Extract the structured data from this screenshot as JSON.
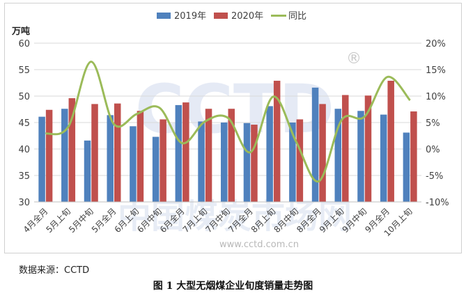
{
  "chart_data": {
    "type": "bar",
    "y_left_unit": "万吨",
    "y_left_range": [
      30,
      60
    ],
    "y_left_ticks": [
      "30",
      "35",
      "40",
      "45",
      "50",
      "55",
      "60"
    ],
    "y_right_range": [
      -10,
      20
    ],
    "y_right_ticks": [
      "-10%",
      "-5%",
      "0%",
      "5%",
      "10%",
      "15%",
      "20%"
    ],
    "categories": [
      "4月全月",
      "5月上旬",
      "5月中旬",
      "5月全月",
      "6月上旬",
      "6月中旬",
      "6月全月",
      "7月上旬",
      "7月中旬",
      "7月全月",
      "8月上旬",
      "8月中旬",
      "8月全月",
      "9月上旬",
      "9月中旬",
      "9月全月",
      "10月上旬"
    ],
    "series": [
      {
        "name": "2019年",
        "type": "bar",
        "axis": "left",
        "color": "#4f81bd",
        "values": [
          46.1,
          47.6,
          41.6,
          46.4,
          44.3,
          42.3,
          48.3,
          45.2,
          45.0,
          44.9,
          48.1,
          45.0,
          51.6,
          47.6,
          47.2,
          46.5,
          43.1
        ]
      },
      {
        "name": "2020年",
        "type": "bar",
        "axis": "right_none",
        "color": "#c0504d",
        "values": [
          47.4,
          49.6,
          48.5,
          48.6,
          47.2,
          45.6,
          48.8,
          47.6,
          47.6,
          44.6,
          52.9,
          45.6,
          48.5,
          50.2,
          50.1,
          52.9,
          47.1
        ]
      },
      {
        "name": "同比",
        "type": "line",
        "axis": "right",
        "color": "#9bbb59",
        "values": [
          2.9,
          4.2,
          16.5,
          4.7,
          6.6,
          7.8,
          1.1,
          5.2,
          5.9,
          -0.6,
          9.9,
          1.4,
          -6.1,
          5.5,
          6.1,
          13.6,
          9.2
        ]
      }
    ],
    "legend_position": "top",
    "grid": true
  },
  "watermark": {
    "logo_text": "CCTD",
    "registered": "®",
    "cn_text": "中国煤炭市场网",
    "url_text": "www.cctd.com.cn"
  },
  "source_note": "数据来源：CCTD",
  "figure_caption": "图 1  大型无烟煤企业旬度销量走势图"
}
